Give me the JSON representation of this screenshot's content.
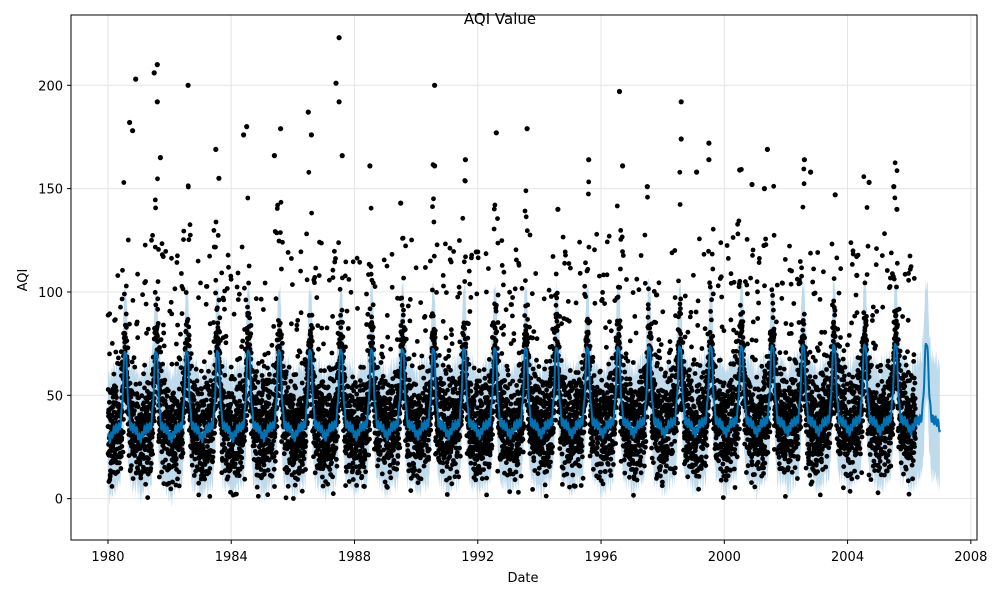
{
  "chart_data": {
    "type": "line",
    "title": "AQI Value",
    "xlabel": "Date",
    "ylabel": "AQI",
    "xlim": [
      1978.8,
      2008.2
    ],
    "ylim": [
      -20,
      234
    ],
    "x_ticks": [
      1980,
      1984,
      1988,
      1992,
      1996,
      2000,
      2004,
      2008
    ],
    "y_ticks": [
      0,
      50,
      100,
      150,
      200
    ],
    "x_tick_labels": [
      "1980",
      "1984",
      "1988",
      "1992",
      "1996",
      "2000",
      "2004",
      "2008"
    ],
    "y_tick_labels": [
      "0",
      "50",
      "100",
      "150",
      "200"
    ],
    "grid": true,
    "colors": {
      "observed": "#000000",
      "forecast_line": "#0072B2",
      "uncertainty_band": "#b3d4e8",
      "grid": "#e5e5e5"
    },
    "forecast_model": {
      "start": 1980.0,
      "end": 2007.0,
      "trend_start": 34,
      "trend_end": 38,
      "seasonal_amplitude": 24,
      "seasonal_peak_fraction": 0.56,
      "lower_offset": -28,
      "upper_offset": 30
    },
    "observed_range": [
      1980.0,
      2006.2
    ],
    "outliers": [
      {
        "x": 1980.7,
        "y": 182
      },
      {
        "x": 1980.8,
        "y": 178
      },
      {
        "x": 1980.9,
        "y": 203
      },
      {
        "x": 1981.5,
        "y": 206
      },
      {
        "x": 1981.6,
        "y": 210
      },
      {
        "x": 1981.6,
        "y": 192
      },
      {
        "x": 1981.7,
        "y": 165
      },
      {
        "x": 1982.6,
        "y": 200
      },
      {
        "x": 1983.5,
        "y": 169
      },
      {
        "x": 1983.6,
        "y": 155
      },
      {
        "x": 1984.5,
        "y": 180
      },
      {
        "x": 1984.4,
        "y": 176
      },
      {
        "x": 1985.4,
        "y": 166
      },
      {
        "x": 1985.6,
        "y": 179
      },
      {
        "x": 1986.5,
        "y": 187
      },
      {
        "x": 1986.6,
        "y": 176
      },
      {
        "x": 1987.4,
        "y": 201
      },
      {
        "x": 1987.5,
        "y": 223
      },
      {
        "x": 1987.5,
        "y": 192
      },
      {
        "x": 1987.6,
        "y": 166
      },
      {
        "x": 1988.5,
        "y": 161
      },
      {
        "x": 1989.5,
        "y": 143
      },
      {
        "x": 1990.6,
        "y": 200
      },
      {
        "x": 1990.6,
        "y": 161
      },
      {
        "x": 1991.6,
        "y": 164
      },
      {
        "x": 1992.6,
        "y": 177
      },
      {
        "x": 1993.6,
        "y": 179
      },
      {
        "x": 1994.6,
        "y": 140
      },
      {
        "x": 1995.6,
        "y": 164
      },
      {
        "x": 1996.6,
        "y": 197
      },
      {
        "x": 1996.7,
        "y": 161
      },
      {
        "x": 1997.5,
        "y": 151
      },
      {
        "x": 1998.6,
        "y": 192
      },
      {
        "x": 1998.6,
        "y": 174
      },
      {
        "x": 1999.1,
        "y": 158
      },
      {
        "x": 1999.5,
        "y": 172
      },
      {
        "x": 1999.5,
        "y": 164
      },
      {
        "x": 2000.5,
        "y": 159
      },
      {
        "x": 2000.9,
        "y": 152
      },
      {
        "x": 2001.3,
        "y": 150
      },
      {
        "x": 2001.4,
        "y": 169
      },
      {
        "x": 2002.6,
        "y": 164
      },
      {
        "x": 2002.8,
        "y": 158
      },
      {
        "x": 2003.6,
        "y": 147
      },
      {
        "x": 2004.3,
        "y": 108
      },
      {
        "x": 2004.7,
        "y": 153
      },
      {
        "x": 2005.5,
        "y": 151
      },
      {
        "x": 2005.6,
        "y": 140
      }
    ]
  }
}
